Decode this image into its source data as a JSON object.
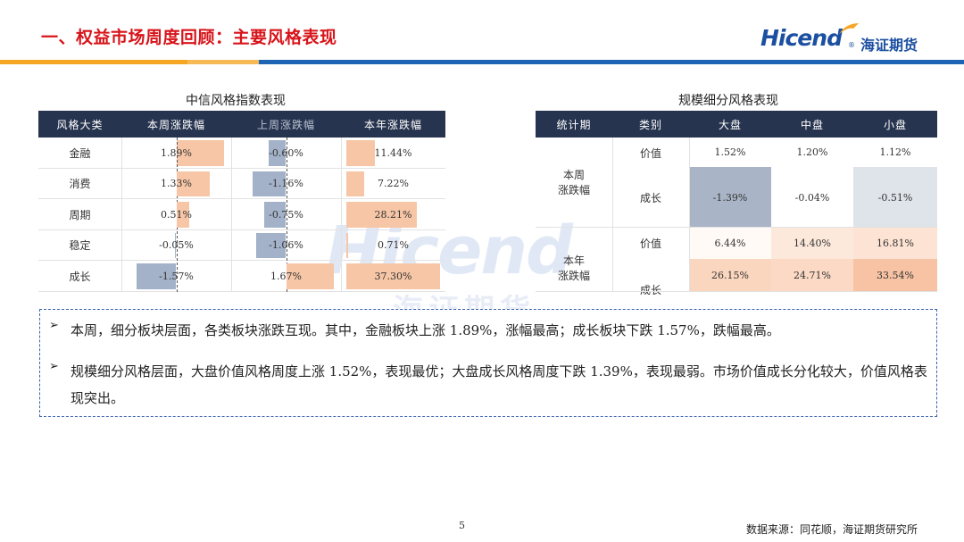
{
  "header": {
    "title": "一、权益市场周度回顾：主要风格表现",
    "logo_en": "Hicend",
    "logo_reg": "®",
    "logo_cn": "海证期货",
    "colors": {
      "title": "#d7141a",
      "brand_blue": "#1b4fa0",
      "bar_orange": "#f5a623",
      "bar_blue": "#1e64b4"
    }
  },
  "left_table": {
    "caption": "中信风格指数表现",
    "headers": [
      "风格大类",
      "本周涨跌幅",
      "上周涨跌幅",
      "本年涨跌幅"
    ],
    "rows": [
      {
        "name": "金融",
        "week": "1.89%",
        "last_week": "-0.60%",
        "ytd": "11.44%"
      },
      {
        "name": "消费",
        "week": "1.33%",
        "last_week": "-1.16%",
        "ytd": "7.22%"
      },
      {
        "name": "周期",
        "week": "0.51%",
        "last_week": "-0.75%",
        "ytd": "28.21%"
      },
      {
        "name": "稳定",
        "week": "-0.05%",
        "last_week": "-1.06%",
        "ytd": "0.71%"
      },
      {
        "name": "成长",
        "week": "-1.57%",
        "last_week": "1.67%",
        "ytd": "37.30%"
      }
    ],
    "values": {
      "week": [
        1.89,
        1.33,
        0.51,
        -0.05,
        -1.57
      ],
      "last_week": [
        -0.6,
        -1.16,
        -0.75,
        -1.06,
        1.67
      ],
      "ytd": [
        11.44,
        7.22,
        28.21,
        0.71,
        37.3
      ]
    },
    "colors": {
      "positive": "#f6c6a6",
      "negative": "#a3b2c8"
    }
  },
  "right_table": {
    "caption": "规模细分风格表现",
    "headers": [
      "统计期",
      "类别",
      "大盘",
      "中盘",
      "小盘"
    ],
    "groups": [
      {
        "period": "本周\n涨跌幅",
        "rows": [
          {
            "cat": "价值",
            "vals": [
              "1.52%",
              "1.20%",
              "1.12%"
            ],
            "colors": [
              "#ffffff",
              "#ffffff",
              "#ffffff"
            ]
          },
          {
            "cat": "成长",
            "vals": [
              "-1.39%",
              "-0.04%",
              "-0.51%"
            ],
            "colors": [
              "#a9b5c6",
              "#ffffff",
              "#dfe3ea"
            ]
          }
        ]
      },
      {
        "period": "本年\n涨跌幅",
        "rows": [
          {
            "cat": "价值",
            "vals": [
              "6.44%",
              "14.40%",
              "16.81%"
            ],
            "colors": [
              "#fffaf6",
              "#fde9dc",
              "#fde3d3"
            ]
          },
          {
            "cat": "成长",
            "vals": [
              "26.15%",
              "24.71%",
              "33.54%"
            ],
            "colors": [
              "#fbd6bf",
              "#fbd9c4",
              "#f8c3a4"
            ]
          }
        ]
      }
    ]
  },
  "watermark": {
    "en": "Hicend",
    "cn": "海证期货"
  },
  "notes": [
    "本周，细分板块层面，各类板块涨跌互现。其中，金融板块上涨 1.89%，涨幅最高；成长板块下跌 1.57%，跌幅最高。",
    "规模细分风格层面，大盘价值风格周度上涨 1.52%，表现最优；大盘成长风格周度下跌 1.39%，表现最弱。市场价值成长分化较大，价值风格表现突出。"
  ],
  "footer": {
    "page_number": "5",
    "source": "数据来源：同花顺，海证期货研究所"
  }
}
